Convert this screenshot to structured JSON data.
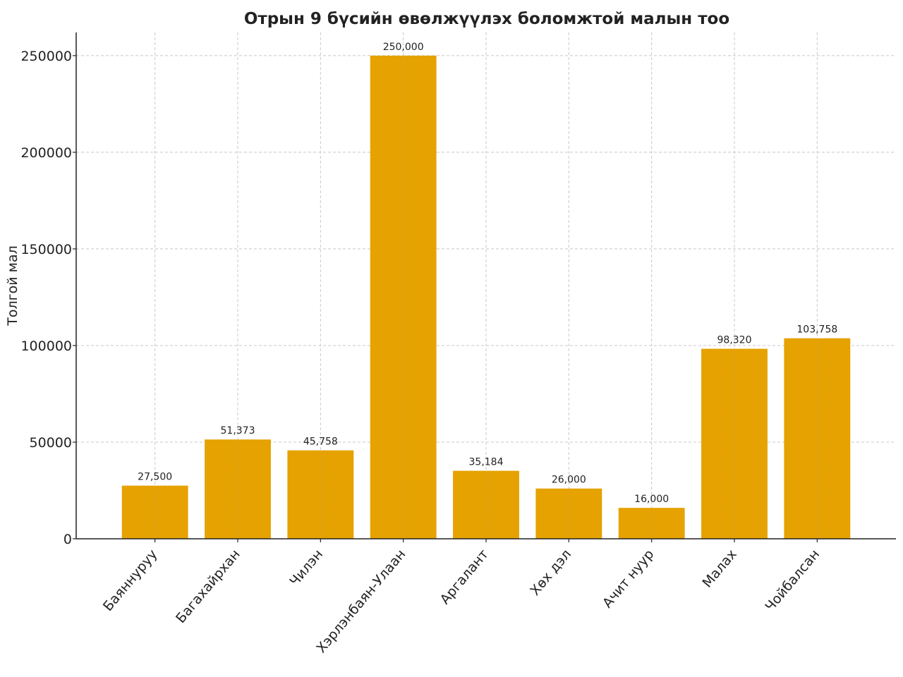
{
  "chart_data": {
    "type": "bar",
    "title": "Отрын 9 бүсийн өвөлжүүлэх боломжтой малын тоо",
    "xlabel": "",
    "ylabel": "Толгой мал",
    "categories": [
      "Баяннуруу",
      "Багахайрхан",
      "Чилэн",
      "Хэрлэнбаян-Улаан",
      "Аргалант",
      "Хөх дэл",
      "Ачит нуур",
      "Малах",
      "Чойбалсан"
    ],
    "values": [
      27500,
      51373,
      45758,
      250000,
      35184,
      26000,
      16000,
      98320,
      103758
    ],
    "value_labels": [
      "27,500",
      "51,373",
      "45,758",
      "250,000",
      "35,184",
      "26,000",
      "16,000",
      "98,320",
      "103,758"
    ],
    "ylim": [
      0,
      262000
    ],
    "yticks": [
      0,
      50000,
      100000,
      150000,
      200000,
      250000
    ],
    "ytick_labels": [
      "0",
      "50000",
      "100000",
      "150000",
      "200000",
      "250000"
    ],
    "grid": true,
    "colors": {
      "bar": "#E5A200",
      "grid": "#c8c8c8",
      "axis": "#222222",
      "text": "#222222"
    }
  }
}
